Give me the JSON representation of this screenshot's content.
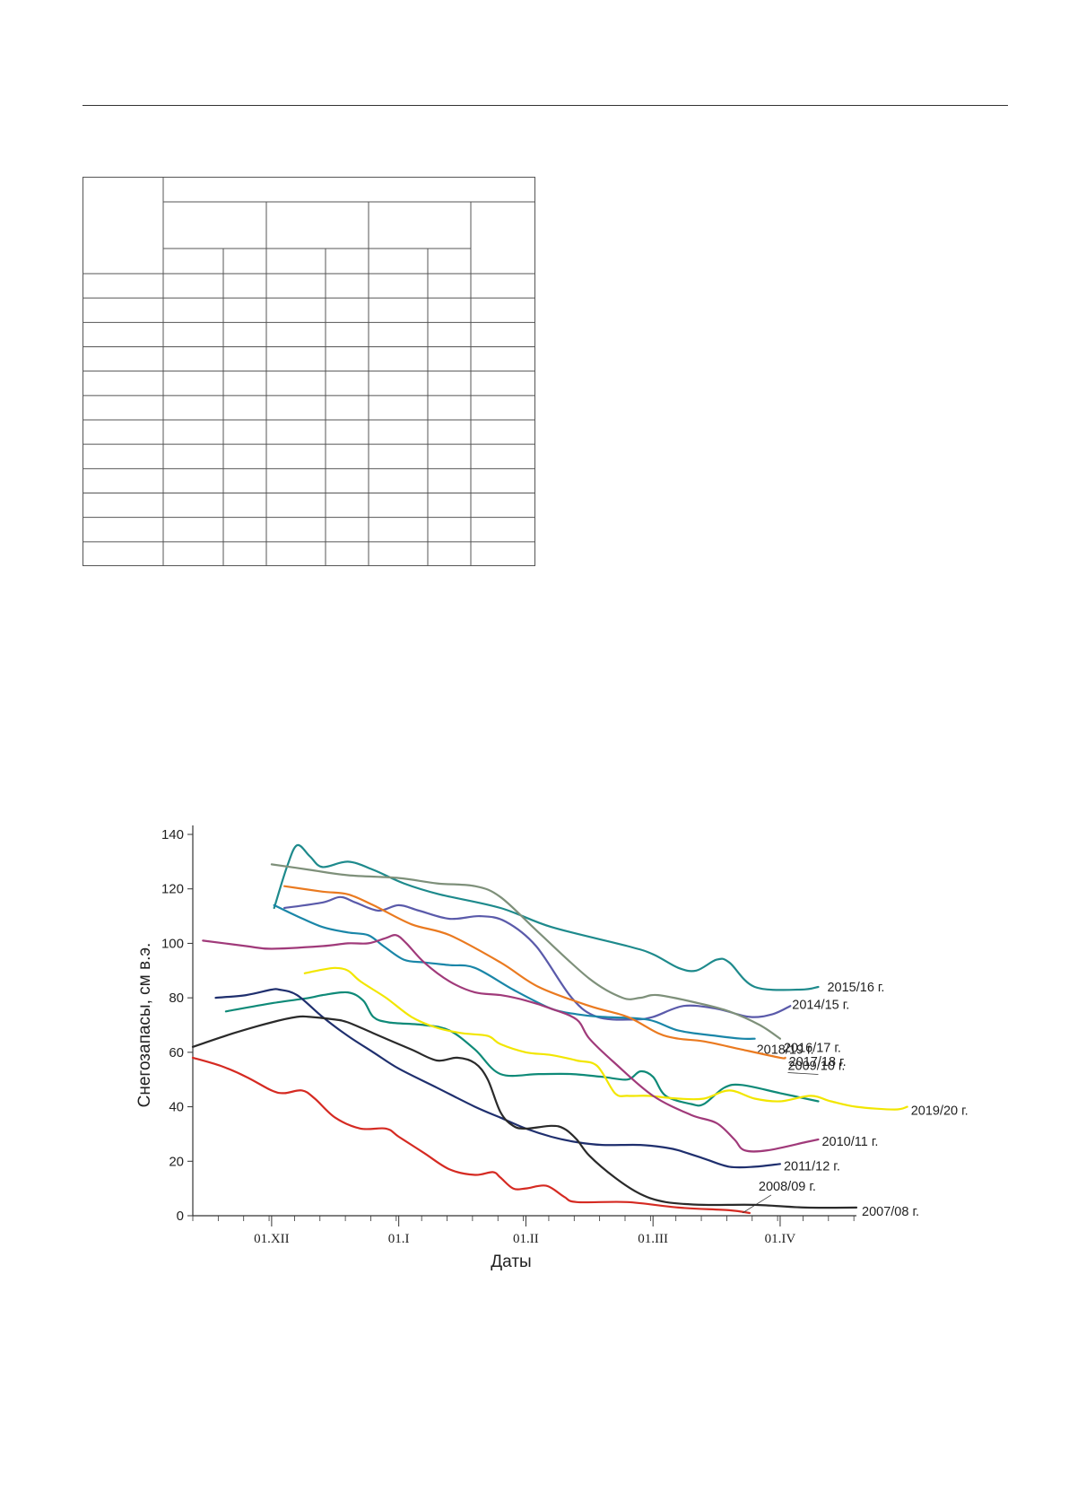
{
  "page": {
    "table": {
      "header_rows": 3,
      "body_rows": 12,
      "columns": 8
    }
  },
  "chart_data": {
    "type": "line",
    "title": "",
    "xlabel": "Даты",
    "ylabel": "Снегозапасы, см в.э.",
    "ylim": [
      0,
      140
    ],
    "yticks": [
      0,
      20,
      40,
      60,
      80,
      100,
      120,
      140
    ],
    "xlim": [
      -31,
      230
    ],
    "xticks": [
      {
        "label": "01.XII",
        "value": 0
      },
      {
        "label": "01.I",
        "value": 50
      },
      {
        "label": "01.II",
        "value": 100
      },
      {
        "label": "01.III",
        "value": 150
      },
      {
        "label": "01.IV",
        "value": 200
      }
    ],
    "grid": false,
    "legend": "labels at line ends",
    "series": [
      {
        "name": "2015/16 г.",
        "color": "#1e8a8c",
        "points": [
          [
            1,
            113
          ],
          [
            6,
            128
          ],
          [
            10,
            136
          ],
          [
            15,
            132
          ],
          [
            20,
            128
          ],
          [
            30,
            130
          ],
          [
            40,
            127
          ],
          [
            52,
            122
          ],
          [
            66,
            118
          ],
          [
            90,
            113
          ],
          [
            110,
            106
          ],
          [
            140,
            99
          ],
          [
            150,
            96
          ],
          [
            160,
            91
          ],
          [
            167,
            90
          ],
          [
            175,
            94
          ],
          [
            180,
            93
          ],
          [
            190,
            84
          ],
          [
            208,
            83
          ],
          [
            215,
            84
          ]
        ]
      },
      {
        "name": "2014/15 г.",
        "color": "#5a5aaa",
        "points": [
          [
            5,
            113
          ],
          [
            20,
            115
          ],
          [
            27,
            117
          ],
          [
            33,
            115
          ],
          [
            42,
            112
          ],
          [
            50,
            114
          ],
          [
            58,
            112
          ],
          [
            70,
            109
          ],
          [
            82,
            110
          ],
          [
            92,
            108
          ],
          [
            104,
            99
          ],
          [
            118,
            80
          ],
          [
            128,
            73
          ],
          [
            142,
            72
          ],
          [
            150,
            73
          ],
          [
            162,
            77
          ],
          [
            175,
            76
          ],
          [
            188,
            73
          ],
          [
            197,
            74
          ],
          [
            204,
            77
          ]
        ]
      },
      {
        "name": "2016/17 г.",
        "color": "#7e907a",
        "points": [
          [
            0,
            129
          ],
          [
            15,
            127
          ],
          [
            30,
            125
          ],
          [
            50,
            124
          ],
          [
            65,
            122
          ],
          [
            80,
            121
          ],
          [
            90,
            117
          ],
          [
            105,
            104
          ],
          [
            125,
            87
          ],
          [
            138,
            80
          ],
          [
            145,
            80
          ],
          [
            152,
            81
          ],
          [
            168,
            78
          ],
          [
            180,
            75
          ],
          [
            192,
            70
          ],
          [
            200,
            65
          ]
        ]
      },
      {
        "name": "2018/19 г.",
        "color": "#1a86a8",
        "points": [
          [
            1,
            114
          ],
          [
            10,
            110
          ],
          [
            20,
            106
          ],
          [
            30,
            104
          ],
          [
            38,
            103
          ],
          [
            44,
            99
          ],
          [
            52,
            94
          ],
          [
            60,
            93
          ],
          [
            70,
            92
          ],
          [
            80,
            91
          ],
          [
            95,
            83
          ],
          [
            110,
            76
          ],
          [
            120,
            74
          ],
          [
            130,
            73
          ],
          [
            148,
            72
          ],
          [
            160,
            68
          ],
          [
            175,
            66
          ],
          [
            185,
            65
          ],
          [
            190,
            65
          ]
        ]
      },
      {
        "name": "2017/18 г.",
        "color": "#ea7a20",
        "points": [
          [
            5,
            121
          ],
          [
            20,
            119
          ],
          [
            30,
            118
          ],
          [
            40,
            114
          ],
          [
            55,
            107
          ],
          [
            70,
            103
          ],
          [
            90,
            93
          ],
          [
            105,
            84
          ],
          [
            125,
            77
          ],
          [
            140,
            73
          ],
          [
            152,
            67
          ],
          [
            160,
            65
          ],
          [
            170,
            64
          ],
          [
            185,
            61
          ],
          [
            200,
            58
          ],
          [
            202,
            58
          ]
        ]
      },
      {
        "name": "2009/10 г.",
        "color": "#0f8a78",
        "points": [
          [
            -18,
            75
          ],
          [
            0,
            78
          ],
          [
            15,
            80
          ],
          [
            20,
            81
          ],
          [
            30,
            82
          ],
          [
            36,
            79
          ],
          [
            40,
            73
          ],
          [
            46,
            71
          ],
          [
            60,
            70
          ],
          [
            70,
            68
          ],
          [
            80,
            61
          ],
          [
            90,
            52
          ],
          [
            105,
            52
          ],
          [
            118,
            52
          ],
          [
            130,
            51
          ],
          [
            140,
            50
          ],
          [
            145,
            53
          ],
          [
            150,
            51
          ],
          [
            155,
            44
          ],
          [
            165,
            41
          ],
          [
            170,
            41
          ],
          [
            178,
            47
          ],
          [
            185,
            48
          ],
          [
            200,
            45
          ],
          [
            215,
            42
          ]
        ]
      },
      {
        "name": "2019/20 г.",
        "color": "#f2e600",
        "points": [
          [
            13,
            89
          ],
          [
            18,
            90
          ],
          [
            25,
            91
          ],
          [
            30,
            90
          ],
          [
            35,
            86
          ],
          [
            45,
            80
          ],
          [
            55,
            73
          ],
          [
            65,
            69
          ],
          [
            75,
            67
          ],
          [
            85,
            66
          ],
          [
            90,
            63
          ],
          [
            100,
            60
          ],
          [
            110,
            59
          ],
          [
            120,
            57
          ],
          [
            128,
            55
          ],
          [
            135,
            45
          ],
          [
            140,
            44
          ],
          [
            148,
            44
          ],
          [
            160,
            43
          ],
          [
            170,
            43
          ],
          [
            180,
            46
          ],
          [
            190,
            43
          ],
          [
            200,
            42
          ],
          [
            212,
            44
          ],
          [
            220,
            42
          ],
          [
            230,
            40
          ],
          [
            245,
            39
          ],
          [
            250,
            40
          ]
        ]
      },
      {
        "name": "2010/11 г.",
        "color": "#a03a7a",
        "points": [
          [
            -27,
            101
          ],
          [
            -10,
            99
          ],
          [
            0,
            98
          ],
          [
            20,
            99
          ],
          [
            30,
            100
          ],
          [
            38,
            100
          ],
          [
            45,
            102
          ],
          [
            49,
            103
          ],
          [
            53,
            100
          ],
          [
            60,
            93
          ],
          [
            70,
            86
          ],
          [
            80,
            82
          ],
          [
            90,
            81
          ],
          [
            100,
            79
          ],
          [
            110,
            76
          ],
          [
            120,
            72
          ],
          [
            125,
            65
          ],
          [
            135,
            56
          ],
          [
            150,
            44
          ],
          [
            165,
            37
          ],
          [
            175,
            34
          ],
          [
            182,
            28
          ],
          [
            186,
            24
          ],
          [
            195,
            24
          ],
          [
            210,
            27
          ],
          [
            215,
            28
          ]
        ]
      },
      {
        "name": "2011/12 г.",
        "color": "#1f2f6e",
        "points": [
          [
            -22,
            80
          ],
          [
            -10,
            81
          ],
          [
            0,
            83
          ],
          [
            3,
            83
          ],
          [
            10,
            81
          ],
          [
            20,
            73
          ],
          [
            30,
            66
          ],
          [
            40,
            60
          ],
          [
            50,
            54
          ],
          [
            65,
            47
          ],
          [
            80,
            40
          ],
          [
            90,
            36
          ],
          [
            100,
            32
          ],
          [
            110,
            29
          ],
          [
            120,
            27
          ],
          [
            130,
            26
          ],
          [
            145,
            26
          ],
          [
            155,
            25
          ],
          [
            160,
            24
          ],
          [
            170,
            21
          ],
          [
            180,
            18
          ],
          [
            190,
            18
          ],
          [
            200,
            19
          ]
        ]
      },
      {
        "name": "2008/09 г.",
        "color": "#d52a22",
        "points": [
          [
            -31,
            58
          ],
          [
            -20,
            55
          ],
          [
            -10,
            51
          ],
          [
            0,
            46
          ],
          [
            5,
            45
          ],
          [
            12,
            46
          ],
          [
            17,
            43
          ],
          [
            25,
            36
          ],
          [
            35,
            32
          ],
          [
            45,
            32
          ],
          [
            50,
            29
          ],
          [
            60,
            23
          ],
          [
            70,
            17
          ],
          [
            80,
            15
          ],
          [
            87,
            16
          ],
          [
            90,
            14
          ],
          [
            95,
            10
          ],
          [
            100,
            10
          ],
          [
            108,
            11
          ],
          [
            115,
            7
          ],
          [
            120,
            5
          ],
          [
            140,
            5
          ],
          [
            160,
            3
          ],
          [
            180,
            2
          ],
          [
            188,
            1
          ]
        ]
      },
      {
        "name": "2007/08 г.",
        "color": "#2a2a2a",
        "points": [
          [
            -31,
            62
          ],
          [
            -15,
            67
          ],
          [
            0,
            71
          ],
          [
            10,
            73
          ],
          [
            15,
            73
          ],
          [
            25,
            72
          ],
          [
            30,
            71
          ],
          [
            40,
            67
          ],
          [
            55,
            61
          ],
          [
            65,
            57
          ],
          [
            73,
            58
          ],
          [
            80,
            56
          ],
          [
            85,
            50
          ],
          [
            90,
            38
          ],
          [
            95,
            33
          ],
          [
            100,
            32
          ],
          [
            110,
            33
          ],
          [
            115,
            32
          ],
          [
            120,
            28
          ],
          [
            125,
            22
          ],
          [
            135,
            14
          ],
          [
            145,
            8
          ],
          [
            155,
            5
          ],
          [
            170,
            4
          ],
          [
            190,
            4
          ],
          [
            210,
            3
          ],
          [
            230,
            3
          ]
        ]
      }
    ]
  }
}
